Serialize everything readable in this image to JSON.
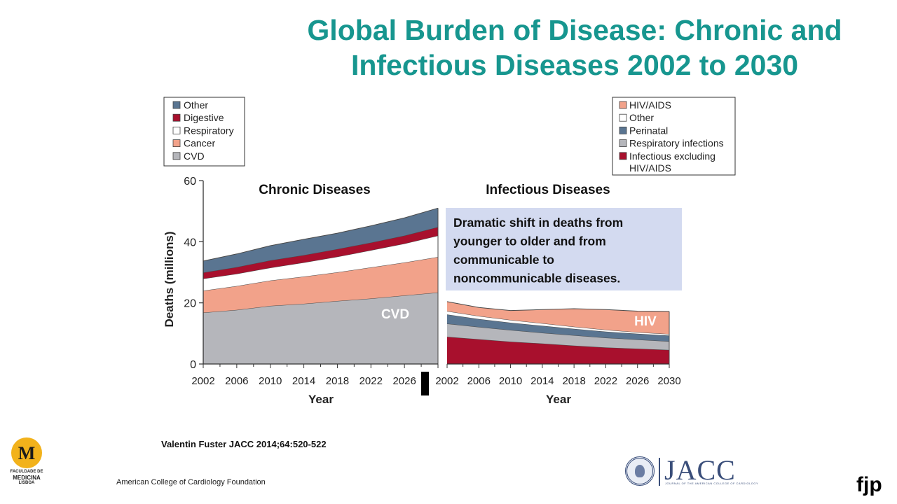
{
  "slide": {
    "title_line1": "Global Burden of Disease: Chronic and",
    "title_line2": "Infectious Diseases 2002 to 2030",
    "citation": "Valentin Fuster JACC 2014;64:520-522",
    "footer": "American College of Cardiology Foundation",
    "logo_left": {
      "initials": "M",
      "line1": "FACULDADE DE",
      "line2": "MEDICINA",
      "line3": "LISBOA"
    },
    "logo_right": {
      "word": "JACC",
      "sub": "JOURNAL OF THE AMERICAN COLLEGE OF CARDIOLOGY"
    },
    "signature": "fjp",
    "title_color": "#17968f"
  },
  "chart_data": [
    {
      "type": "area",
      "stacked": true,
      "title": "Chronic Diseases",
      "xlabel": "Year",
      "ylabel": "Deaths (millions)",
      "ylim": [
        0,
        60
      ],
      "yticks": [
        0,
        20,
        40,
        60
      ],
      "xticks": [
        2002,
        2006,
        2010,
        2014,
        2018,
        2022,
        2026
      ],
      "x": [
        2002,
        2006,
        2010,
        2014,
        2018,
        2022,
        2026,
        2030
      ],
      "series": [
        {
          "name": "CVD",
          "color": "#b5b6bb",
          "values": [
            16.8,
            17.7,
            19.0,
            19.7,
            20.6,
            21.4,
            22.4,
            23.4
          ]
        },
        {
          "name": "Cancer",
          "color": "#f2a28a",
          "values": [
            7.2,
            7.8,
            8.3,
            8.9,
            9.4,
            10.2,
            10.8,
            11.6
          ]
        },
        {
          "name": "Respiratory",
          "color": "#ffffff",
          "values": [
            3.9,
            4.0,
            4.2,
            4.6,
            5.1,
            5.6,
            6.2,
            7.0
          ]
        },
        {
          "name": "Digestive",
          "color": "#a8102d",
          "values": [
            2.0,
            2.2,
            2.4,
            2.4,
            2.5,
            2.5,
            2.6,
            2.8
          ]
        },
        {
          "name": "Other",
          "color": "#5a7591",
          "values": [
            3.8,
            4.3,
            4.8,
            5.2,
            5.2,
            5.5,
            5.8,
            6.2
          ]
        }
      ],
      "legend": [
        "Other",
        "Digestive",
        "Respiratory",
        "Cancer",
        "CVD"
      ],
      "legend_position": "top-left",
      "annotation": "CVD"
    },
    {
      "type": "area",
      "stacked": true,
      "title": "Infectious Diseases",
      "xlabel": "Year",
      "ylim": [
        0,
        60
      ],
      "xticks": [
        2002,
        2006,
        2010,
        2014,
        2018,
        2022,
        2026,
        2030
      ],
      "x": [
        2002,
        2006,
        2010,
        2014,
        2018,
        2022,
        2026,
        2030
      ],
      "series": [
        {
          "name": "Infectious excluding HIV/AIDS",
          "color": "#a8102d",
          "values": [
            8.9,
            8.1,
            7.3,
            6.7,
            6.0,
            5.4,
            5.0,
            4.6
          ]
        },
        {
          "name": "Respiratory infections",
          "color": "#b5b6bb",
          "values": [
            4.3,
            4.0,
            3.8,
            3.5,
            3.4,
            3.2,
            3.0,
            2.8
          ]
        },
        {
          "name": "Perinatal",
          "color": "#5a7591",
          "values": [
            3.0,
            2.6,
            2.4,
            2.3,
            2.1,
            2.0,
            1.9,
            1.9
          ]
        },
        {
          "name": "Other",
          "color": "#ffffff",
          "values": [
            1.1,
            1.0,
            0.9,
            0.8,
            0.7,
            0.6,
            0.5,
            0.5
          ]
        },
        {
          "name": "HIV/AIDS",
          "color": "#f2a28a",
          "values": [
            3.1,
            2.8,
            3.1,
            4.5,
            5.9,
            6.6,
            6.9,
            7.4
          ]
        }
      ],
      "legend": [
        "HIV/AIDS",
        "Other",
        "Perinatal",
        "Respiratory infections",
        [
          "Infectious excluding",
          "HIV/AIDS"
        ]
      ],
      "legend_position": "top-right",
      "annotation": "HIV",
      "callout": [
        "Dramatic shift in deaths from",
        "younger to older and from",
        "communicable to",
        "noncommunicable diseases."
      ],
      "callout_color": "#d3daf0"
    }
  ]
}
